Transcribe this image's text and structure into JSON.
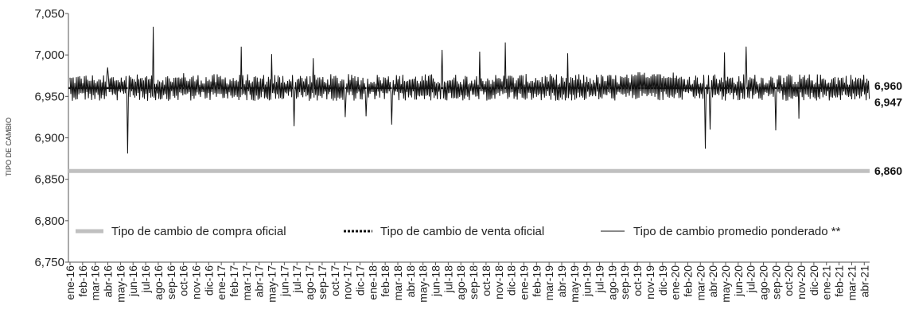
{
  "chart_data": {
    "type": "line",
    "title": "",
    "xlabel": "",
    "ylabel": "TIPO DE CAMBIO",
    "ylim": [
      6750,
      7050
    ],
    "yticks": [
      6750,
      6800,
      6850,
      6900,
      6950,
      7000,
      7050
    ],
    "ytick_labels": [
      "6,750",
      "6,800",
      "6,850",
      "6,900",
      "6,950",
      "7,000",
      "7,050"
    ],
    "x_ticks": [
      "ene-16",
      "feb-16",
      "mar-16",
      "abr-16",
      "may-16",
      "jun-16",
      "jul-16",
      "ago-16",
      "sep-16",
      "oct-16",
      "nov-16",
      "dic-16",
      "ene-17",
      "feb-17",
      "mar-17",
      "abr-17",
      "may-17",
      "jun-17",
      "jul-17",
      "ago-17",
      "sep-17",
      "oct-17",
      "nov-17",
      "dic-17",
      "ene-18",
      "feb-18",
      "mar-18",
      "abr-18",
      "may-18",
      "jun-18",
      "jul-18",
      "ago-18",
      "sep-18",
      "oct-18",
      "nov-18",
      "dic-18",
      "ene-19",
      "feb-19",
      "mar-19",
      "abr-19",
      "may-19",
      "jun-19",
      "jul-19",
      "ago-19",
      "sep-19",
      "oct-19",
      "nov-19",
      "dic-19",
      "ene-20",
      "feb-20",
      "mar-20",
      "abr-20",
      "may-20",
      "jun-20",
      "jul-20",
      "ago-20",
      "sep-20",
      "oct-20",
      "nov-20",
      "dic-20",
      "ene-21",
      "feb-21",
      "mar-21",
      "abr-21"
    ],
    "grid": false,
    "legend_position": "bottom-inside",
    "series": [
      {
        "name": "Tipo de cambio de compra oficial",
        "style": "thick-gray",
        "color": "#c0c0c0",
        "values_const": 6860,
        "end_label": "6,860"
      },
      {
        "name": "Tipo de cambio de venta oficial",
        "style": "dotted-black",
        "color": "#111111",
        "values_const": 6960,
        "end_label": "6,960"
      },
      {
        "name": "Tipo de cambio promedio ponderado **",
        "style": "thin-black",
        "color": "#111111",
        "baseline": 6960,
        "final_value": 6947,
        "end_label": "6,947",
        "spikes": [
          {
            "month": 1.0,
            "value": 6966
          },
          {
            "month": 3.0,
            "value": 6985
          },
          {
            "month": 4.6,
            "value": 6881
          },
          {
            "month": 6.6,
            "value": 7034
          },
          {
            "month": 9.0,
            "value": 6978
          },
          {
            "month": 13.6,
            "value": 7010
          },
          {
            "month": 16.0,
            "value": 7001
          },
          {
            "month": 17.8,
            "value": 6914
          },
          {
            "month": 19.3,
            "value": 6996
          },
          {
            "month": 21.8,
            "value": 6925
          },
          {
            "month": 23.5,
            "value": 6926
          },
          {
            "month": 25.5,
            "value": 6916
          },
          {
            "month": 29.5,
            "value": 7006
          },
          {
            "month": 32.5,
            "value": 7004
          },
          {
            "month": 34.5,
            "value": 7015
          },
          {
            "month": 39.5,
            "value": 7002
          },
          {
            "month": 50.4,
            "value": 6887
          },
          {
            "month": 50.8,
            "value": 6910
          },
          {
            "month": 51.9,
            "value": 7003
          },
          {
            "month": 53.6,
            "value": 7010
          },
          {
            "month": 56.0,
            "value": 6909
          },
          {
            "month": 57.8,
            "value": 6923
          }
        ]
      }
    ]
  }
}
